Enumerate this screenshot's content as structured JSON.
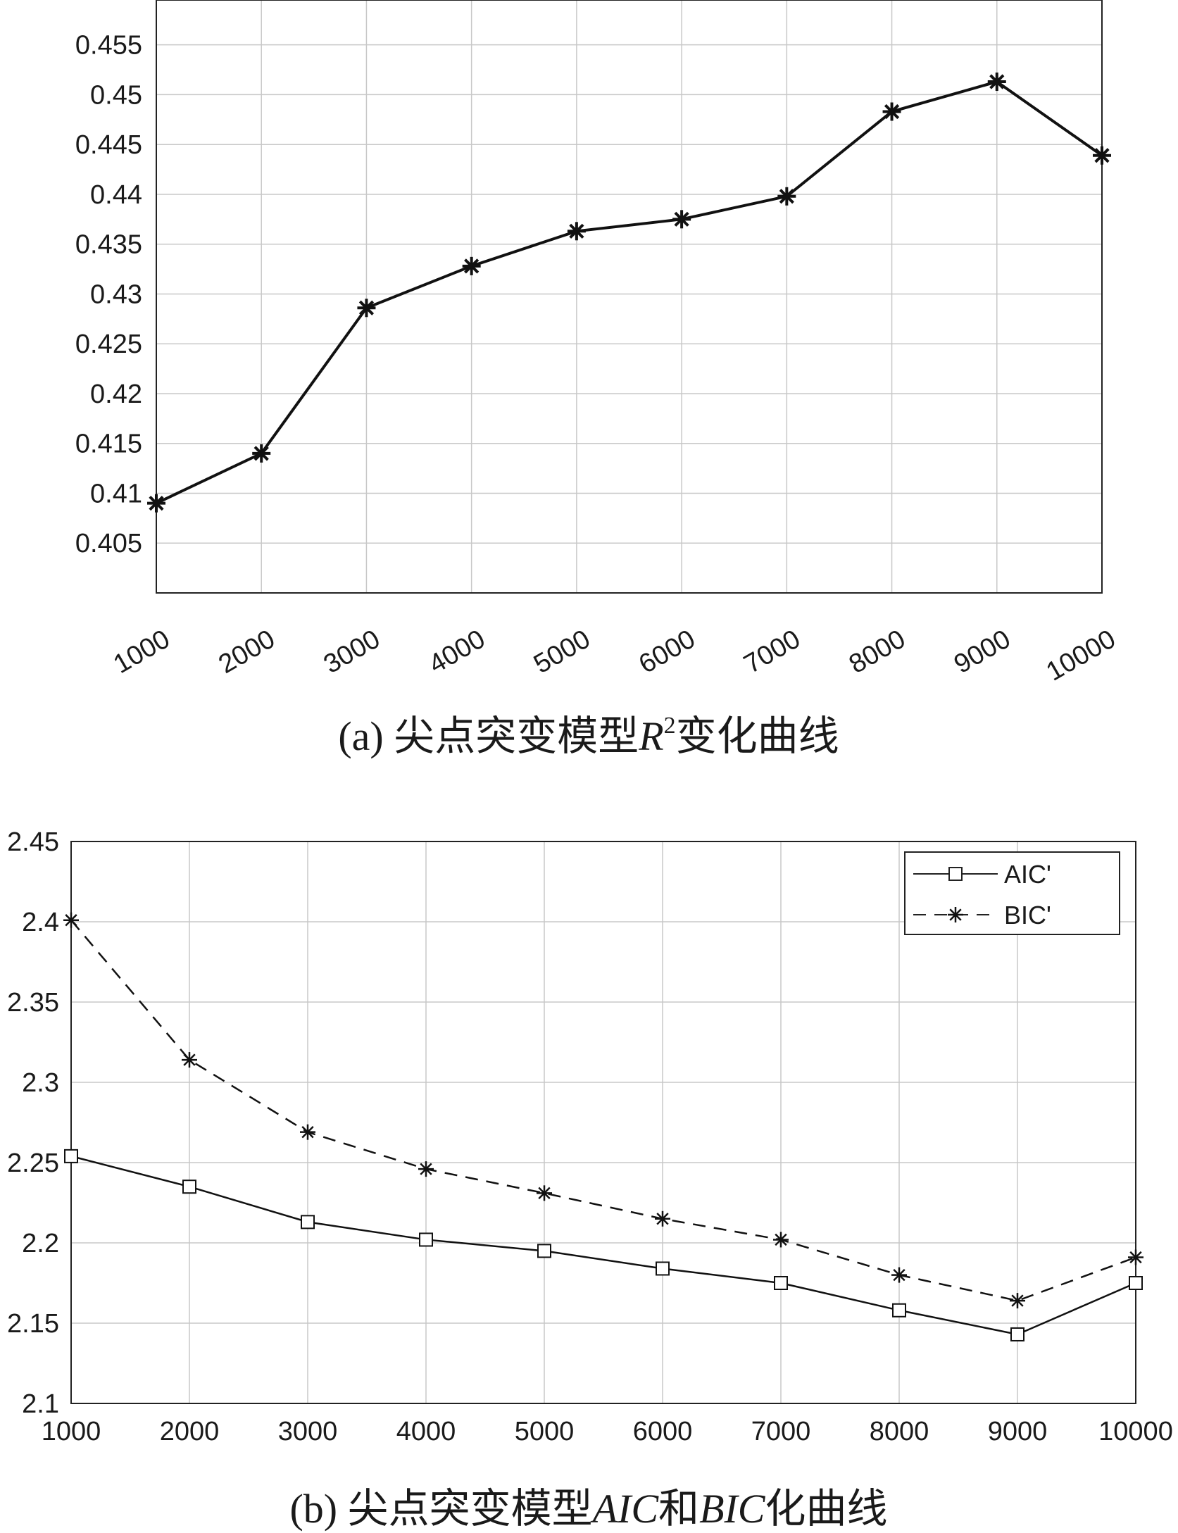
{
  "chart_data": [
    {
      "type": "line",
      "categories": [
        "1000",
        "2000",
        "3000",
        "4000",
        "5000",
        "6000",
        "7000",
        "8000",
        "9000",
        "10000"
      ],
      "series": [
        {
          "values": [
            0.409,
            0.414,
            0.4286,
            0.4328,
            0.4363,
            0.4375,
            0.4398,
            0.4483,
            0.4513,
            0.4439
          ]
        }
      ],
      "ylim": [
        0.4,
        0.4595
      ],
      "yticks": [
        "0.405",
        "0.41",
        "0.415",
        "0.42",
        "0.425",
        "0.43",
        "0.435",
        "0.44",
        "0.445",
        "0.45",
        "0.455"
      ],
      "grid": true,
      "marker": "asterisk",
      "caption": {
        "prefix": "(a) 尖点突变模型",
        "var": "R",
        "sup": "2",
        "suffix": "变化曲线"
      }
    },
    {
      "type": "line",
      "categories": [
        "1000",
        "2000",
        "3000",
        "4000",
        "5000",
        "6000",
        "7000",
        "8000",
        "9000",
        "10000"
      ],
      "series": [
        {
          "name": "AIC'",
          "style": "solid",
          "marker": "square",
          "values": [
            2.254,
            2.235,
            2.213,
            2.202,
            2.195,
            2.184,
            2.175,
            2.158,
            2.143,
            2.175
          ]
        },
        {
          "name": "BIC'",
          "style": "dashed",
          "marker": "asterisk",
          "values": [
            2.401,
            2.314,
            2.269,
            2.246,
            2.231,
            2.215,
            2.202,
            2.18,
            2.164,
            2.191
          ]
        }
      ],
      "ylim": [
        2.1,
        2.45
      ],
      "yticks": [
        "2.1",
        "2.15",
        "2.2",
        "2.25",
        "2.3",
        "2.35",
        "2.4",
        "2.45"
      ],
      "grid": true,
      "legend": "top-right",
      "caption": {
        "prefix": "(b) 尖点突变模型",
        "var1": "AIC",
        "mid": "和",
        "var2": "BIC",
        "suffix": "化曲线"
      }
    }
  ]
}
